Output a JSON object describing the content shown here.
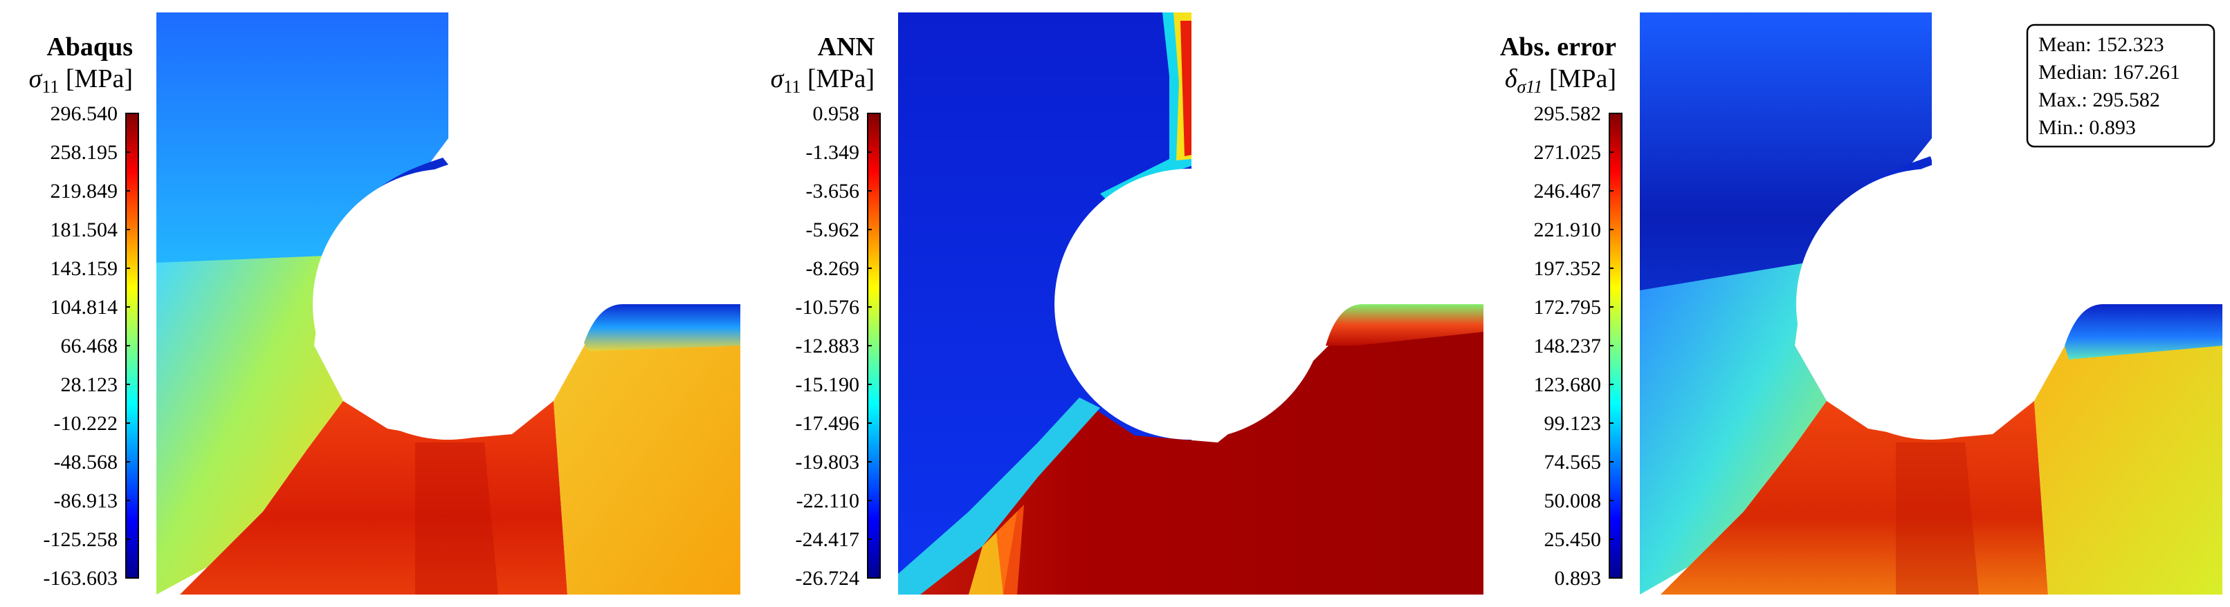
{
  "colormap": "jet",
  "panels": [
    {
      "id": "abaqus",
      "title": "Abaqus",
      "symbol": "σ",
      "subscript": "11",
      "unit": "[MPa]",
      "ticks": [
        "296.540",
        "258.195",
        "219.849",
        "181.504",
        "143.159",
        "104.814",
        "66.468",
        "28.123",
        "-10.222",
        "-48.568",
        "-86.913",
        "-125.258",
        "-163.603"
      ],
      "range": [
        -163.603,
        296.54
      ],
      "field": {
        "upper_left_color": "#2f86ff",
        "notch_edge_color": "#0a2ad0",
        "lower_band_color": "#d81e05",
        "lower_right_color": "#f7a30c",
        "diagonal_color": "#7ff06c"
      }
    },
    {
      "id": "ann",
      "title": "ANN",
      "symbol": "σ",
      "subscript": "11",
      "unit": "[MPa]",
      "ticks": [
        "0.958",
        "-1.349",
        "-3.656",
        "-5.962",
        "-8.269",
        "-10.576",
        "-12.883",
        "-15.190",
        "-17.496",
        "-19.803",
        "-22.110",
        "-24.417",
        "-26.724"
      ],
      "range": [
        -26.724,
        0.958
      ],
      "field": {
        "upper_left_color": "#0a26e0",
        "notch_edge_color": "#17d7ef",
        "lower_band_color": "#a80000",
        "lower_right_color": "#a80000",
        "diagonal_color": "#27d3e0"
      }
    },
    {
      "id": "error",
      "title": "Abs. error",
      "symbol": "δ",
      "subscript": "σ11",
      "unit": "[MPa]",
      "ticks": [
        "295.582",
        "271.025",
        "246.467",
        "221.910",
        "197.352",
        "172.795",
        "148.237",
        "123.680",
        "99.123",
        "74.565",
        "50.008",
        "25.450",
        "0.893"
      ],
      "range": [
        0.893,
        295.582
      ],
      "field": {
        "upper_left_color": "#0b34d6",
        "notch_edge_color": "#0a2ad0",
        "lower_band_color": "#db2a05",
        "lower_right_color": "#d8ee2a",
        "diagonal_color": "#52d6c8"
      },
      "stats": [
        "Mean: 152.323",
        "Median: 167.261",
        "Max.: 295.582",
        "Min.: 0.893"
      ]
    }
  ]
}
